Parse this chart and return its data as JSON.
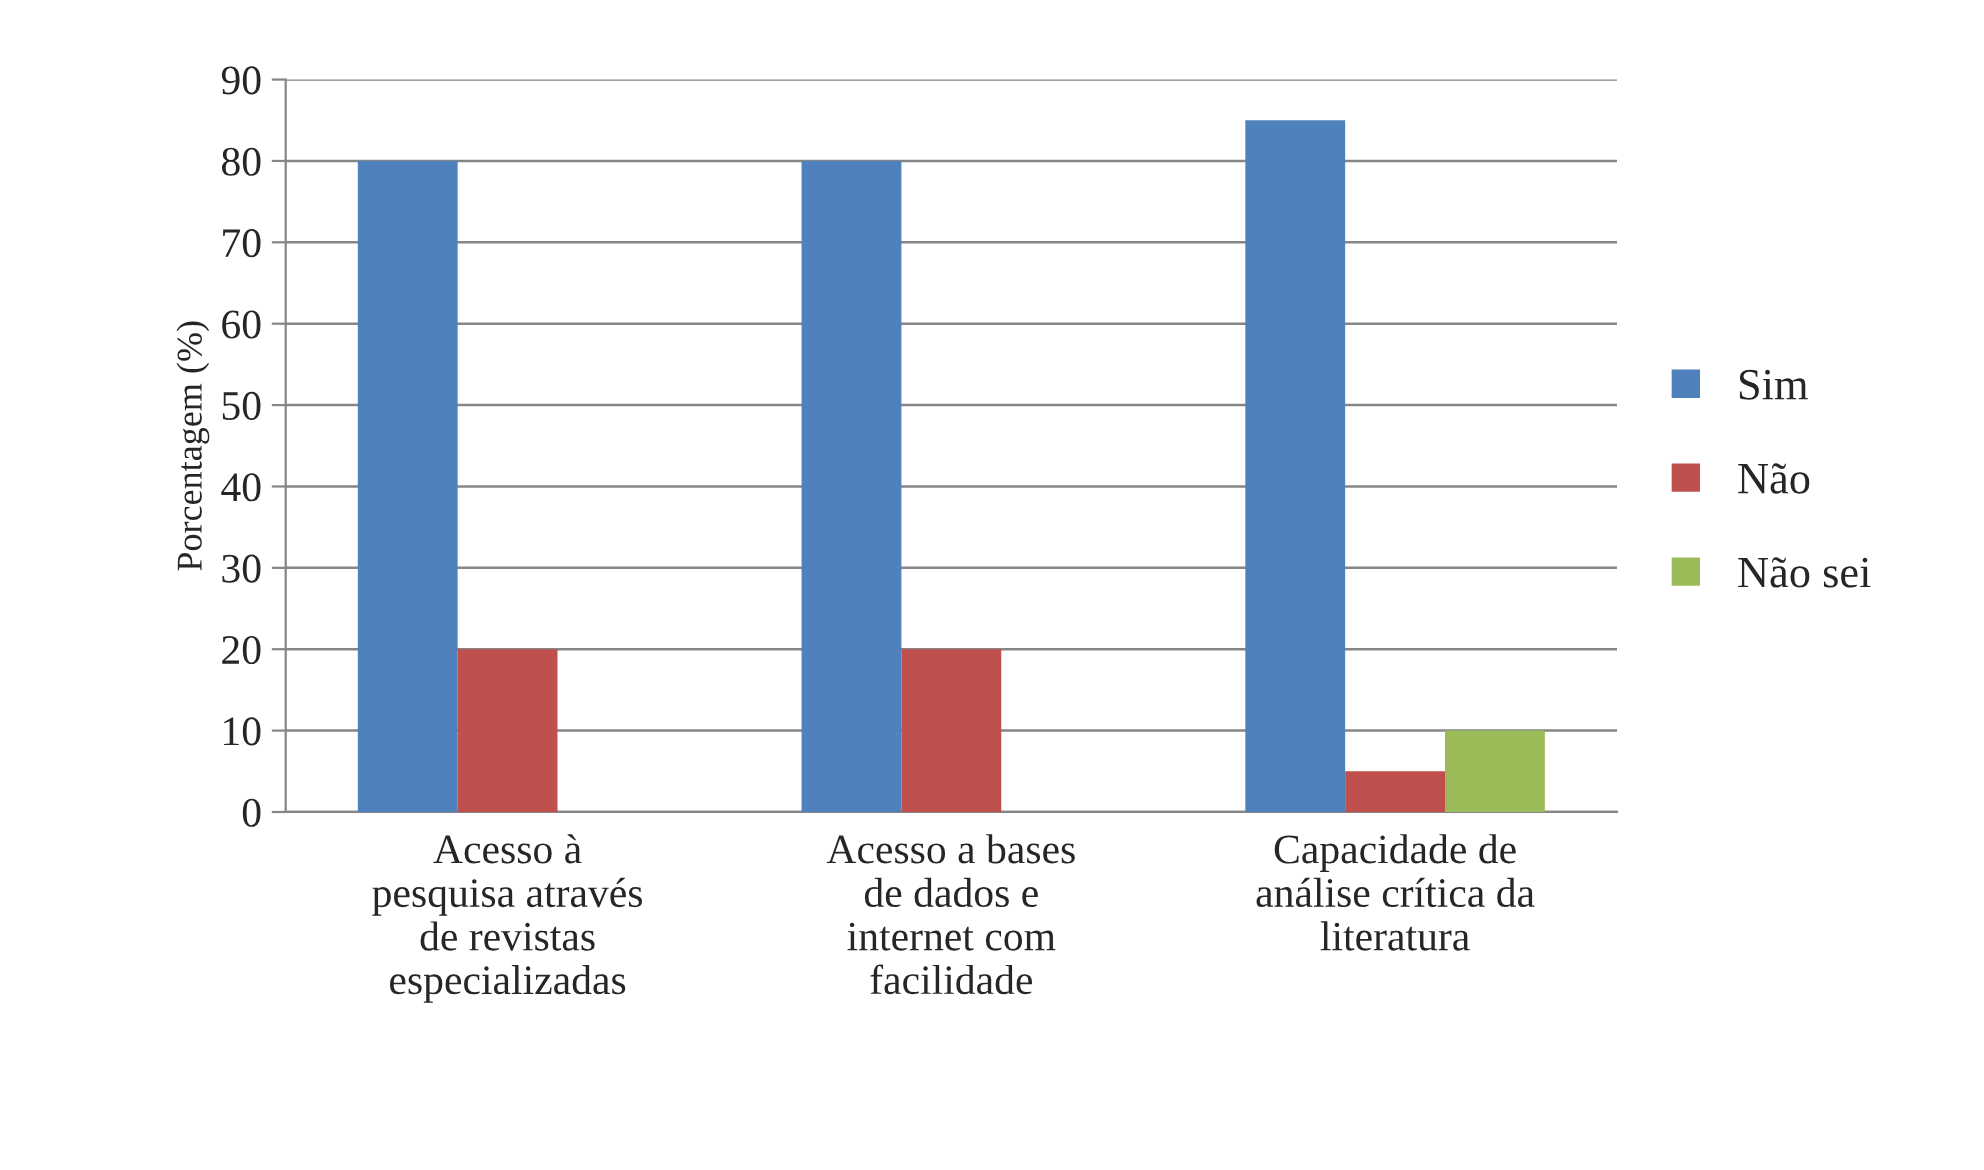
{
  "chart_data": {
    "type": "bar",
    "ylabel": "Porcentagem (%)",
    "categories": [
      "Acesso à\npesquisa através\nde revistas\nespecializadas",
      "Acesso a bases\nde dados e\ninternet com\nfacilidade",
      "Capacidade de\nanálise crítica da\nliteratura"
    ],
    "series": [
      {
        "name": "Sim",
        "color": "#4f81bd",
        "values": [
          80,
          80,
          85
        ]
      },
      {
        "name": "Não",
        "color": "#c0504d",
        "values": [
          20,
          20,
          5
        ]
      },
      {
        "name": "Não sei",
        "color": "#9bbb59",
        "values": [
          null,
          null,
          10
        ]
      }
    ],
    "ylim": [
      0,
      90
    ],
    "yticks": [
      0,
      10,
      20,
      30,
      40,
      50,
      60,
      70,
      80,
      90
    ],
    "grid": "y",
    "legend": "right"
  }
}
